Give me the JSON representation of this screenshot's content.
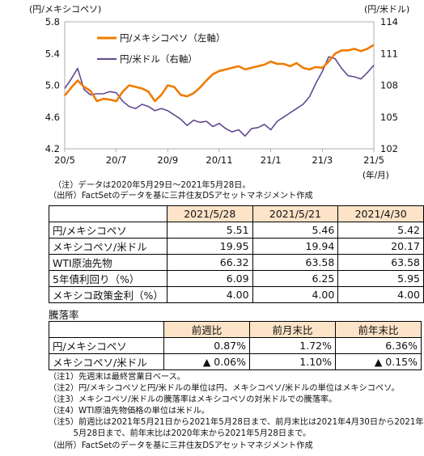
{
  "chart_data": {
    "type": "line",
    "left_axis_unit": "(円/メキシコペソ)",
    "right_axis_unit": "(円/米ドル)",
    "x_axis_unit": "(年/月)",
    "x_ticks": [
      "20/5",
      "20/7",
      "20/9",
      "20/11",
      "21/1",
      "21/3",
      "21/5"
    ],
    "y_left_ticks": [
      "5.8",
      "5.4",
      "5.0",
      "4.6",
      "4.2"
    ],
    "y_right_ticks": [
      "114",
      "111",
      "108",
      "105",
      "102"
    ],
    "y_left_lim": [
      4.2,
      5.8
    ],
    "y_right_lim": [
      102,
      114
    ],
    "x_lim": [
      0,
      12
    ],
    "legend_position": "top-center",
    "series": [
      {
        "name": "円/メキシコペソ（左軸）",
        "axis": "left",
        "color": "#f07c00",
        "x": [
          0,
          0.25,
          0.5,
          0.75,
          1.0,
          1.25,
          1.5,
          1.75,
          2.0,
          2.25,
          2.5,
          2.75,
          3.0,
          3.25,
          3.5,
          3.75,
          4.0,
          4.25,
          4.5,
          4.75,
          5.0,
          5.25,
          5.5,
          5.75,
          6.0,
          6.25,
          6.5,
          6.75,
          7.0,
          7.25,
          7.5,
          7.75,
          8.0,
          8.25,
          8.5,
          8.75,
          9.0,
          9.25,
          9.5,
          9.75,
          10.0,
          10.25,
          10.5,
          10.75,
          11.0,
          11.25,
          11.5,
          11.75,
          12.0
        ],
        "values": [
          4.87,
          4.97,
          5.06,
          4.98,
          4.93,
          4.8,
          4.83,
          4.82,
          4.8,
          4.92,
          5.0,
          4.98,
          4.96,
          4.92,
          4.8,
          4.88,
          5.0,
          4.98,
          4.88,
          4.86,
          4.9,
          4.97,
          5.06,
          5.14,
          5.18,
          5.2,
          5.22,
          5.24,
          5.2,
          5.22,
          5.24,
          5.26,
          5.3,
          5.27,
          5.27,
          5.24,
          5.28,
          5.22,
          5.2,
          5.23,
          5.22,
          5.3,
          5.4,
          5.44,
          5.44,
          5.46,
          5.43,
          5.46,
          5.51
        ]
      },
      {
        "name": "円/米ドル（右軸）",
        "axis": "right",
        "color": "#604a8f",
        "x": [
          0,
          0.25,
          0.5,
          0.75,
          1.0,
          1.25,
          1.5,
          1.75,
          2.0,
          2.25,
          2.5,
          2.75,
          3.0,
          3.25,
          3.5,
          3.75,
          4.0,
          4.25,
          4.5,
          4.75,
          5.0,
          5.25,
          5.5,
          5.75,
          6.0,
          6.25,
          6.5,
          6.75,
          7.0,
          7.25,
          7.5,
          7.75,
          8.0,
          8.25,
          8.5,
          8.75,
          9.0,
          9.25,
          9.5,
          9.75,
          10.0,
          10.25,
          10.5,
          10.75,
          11.0,
          11.25,
          11.5,
          11.75,
          12.0
        ],
        "values": [
          107.7,
          108.6,
          109.6,
          107.6,
          107.1,
          107.2,
          107.2,
          107.4,
          107.3,
          106.5,
          106.0,
          105.8,
          106.2,
          106.0,
          105.6,
          105.8,
          105.6,
          105.2,
          104.8,
          104.2,
          104.7,
          104.5,
          104.6,
          104.1,
          104.4,
          103.9,
          103.6,
          103.8,
          103.2,
          103.9,
          104.0,
          104.3,
          103.8,
          104.6,
          105.0,
          105.4,
          105.8,
          106.2,
          106.9,
          108.2,
          109.3,
          110.7,
          110.5,
          109.6,
          108.9,
          108.8,
          108.6,
          109.2,
          109.9
        ]
      }
    ]
  },
  "notes_top": [
    "（注）データは2020年5月29日～2021年5月28日。",
    "（出所）FactSetのデータを基に三井住友DSアセットマネジメント作成"
  ],
  "table1": {
    "headers": [
      "",
      "2021/5/28",
      "2021/5/21",
      "2021/4/30"
    ],
    "rows": [
      [
        "円/メキシコペソ",
        "5.51",
        "5.46",
        "5.42"
      ],
      [
        "メキシコペソ/米ドル",
        "19.95",
        "19.94",
        "20.17"
      ],
      [
        "WTI原油先物",
        "66.32",
        "63.58",
        "63.58"
      ],
      [
        "5年債利回り（%）",
        "6.09",
        "6.25",
        "5.95"
      ],
      [
        "メキシコ政策金利（%）",
        "4.00",
        "4.00",
        "4.00"
      ]
    ]
  },
  "section_title": "騰落率",
  "table2": {
    "headers": [
      "",
      "前週比",
      "前月末比",
      "前年末比"
    ],
    "rows": [
      [
        "円/メキシコペソ",
        "0.87%",
        "1.72%",
        "6.36%"
      ],
      [
        "メキシコペソ/米ドル",
        "▲ 0.06%",
        "1.10%",
        "▲ 0.15%"
      ]
    ]
  },
  "notes_bottom": [
    "（注1）先週末は最終営業日ベース。",
    "（注2）円/メキシコペソと円/米ドルの単位は円、メキシコペソ/米ドルの単位はメキシコペソ。",
    "（注3）メキシコペソ/米ドルの騰落率はメキシコペソの対米ドルでの騰落率。",
    "（注4）WTI原油先物価格の単位は米ドル。",
    "（注5）前週比は2021年5月21日から2021年5月28日まで、前月末比は2021年4月30日から2021年",
    "　　　5月28日まで、前年末比は2020年末から2021年5月28日まで。",
    "（出所）FactSetのデータを基に三井住友DSアセットマネジメント作成"
  ]
}
